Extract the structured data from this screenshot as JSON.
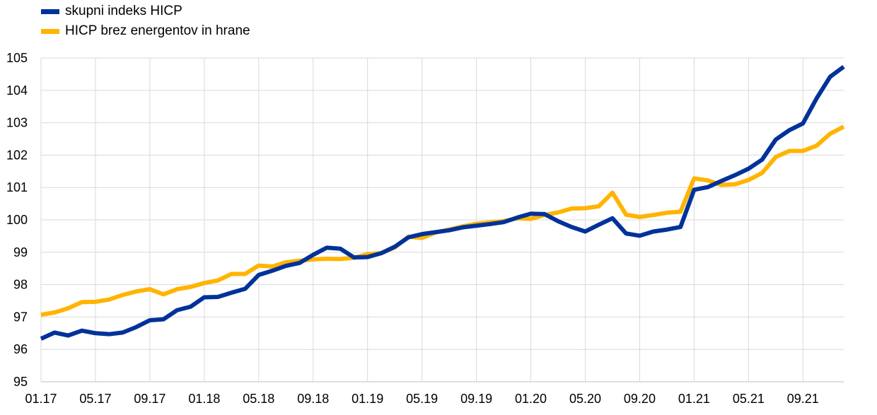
{
  "chart_data": {
    "type": "line",
    "title": "",
    "xlabel": "",
    "ylabel": "",
    "ylim": [
      95,
      105
    ],
    "yticks": [
      95,
      96,
      97,
      98,
      99,
      100,
      101,
      102,
      103,
      104,
      105
    ],
    "grid": true,
    "legend_position": "top-left",
    "x_tick_labels": [
      "01.17",
      "05.17",
      "09.17",
      "01.18",
      "05.18",
      "09.18",
      "01.19",
      "05.19",
      "09.19",
      "01.20",
      "05.20",
      "09.20",
      "01.21",
      "05.21",
      "09.21"
    ],
    "x_tick_every": 4,
    "x": [
      "01.17",
      "02.17",
      "03.17",
      "04.17",
      "05.17",
      "06.17",
      "07.17",
      "08.17",
      "09.17",
      "10.17",
      "11.17",
      "12.17",
      "01.18",
      "02.18",
      "03.18",
      "04.18",
      "05.18",
      "06.18",
      "07.18",
      "08.18",
      "09.18",
      "10.18",
      "11.18",
      "12.18",
      "01.19",
      "02.19",
      "03.19",
      "04.19",
      "05.19",
      "06.19",
      "07.19",
      "08.19",
      "09.19",
      "10.19",
      "11.19",
      "12.19",
      "01.20",
      "02.20",
      "03.20",
      "04.20",
      "05.20",
      "06.20",
      "07.20",
      "08.20",
      "09.20",
      "10.20",
      "11.20",
      "12.20",
      "01.21",
      "02.21",
      "03.21",
      "04.21",
      "05.21",
      "06.21",
      "07.21",
      "08.21",
      "09.21",
      "10.21",
      "11.21",
      "12.21"
    ],
    "series": [
      {
        "name": "skupni indeks HICP",
        "color": "#003299",
        "values": [
          96.33,
          96.52,
          96.43,
          96.58,
          96.5,
          96.47,
          96.52,
          96.69,
          96.9,
          96.93,
          97.21,
          97.32,
          97.61,
          97.62,
          97.75,
          97.87,
          98.3,
          98.43,
          98.58,
          98.67,
          98.92,
          99.14,
          99.11,
          98.84,
          98.85,
          98.97,
          99.17,
          99.46,
          99.56,
          99.62,
          99.68,
          99.77,
          99.82,
          99.87,
          99.93,
          100.07,
          100.19,
          100.18,
          99.96,
          99.78,
          99.64,
          99.85,
          100.05,
          99.58,
          99.51,
          99.64,
          99.7,
          99.78,
          100.93,
          101.01,
          101.2,
          101.38,
          101.58,
          101.86,
          102.48,
          102.77,
          102.98,
          103.75,
          104.42,
          104.73
        ]
      },
      {
        "name": "HICP brez energentov in hrane",
        "color": "#FFB400",
        "values": [
          97.07,
          97.14,
          97.27,
          97.46,
          97.47,
          97.54,
          97.68,
          97.79,
          97.86,
          97.7,
          97.86,
          97.93,
          98.05,
          98.13,
          98.33,
          98.33,
          98.59,
          98.56,
          98.69,
          98.74,
          98.78,
          98.8,
          98.79,
          98.83,
          98.94,
          98.97,
          99.15,
          99.48,
          99.44,
          99.61,
          99.7,
          99.8,
          99.88,
          99.92,
          99.96,
          100.05,
          100.03,
          100.15,
          100.23,
          100.35,
          100.36,
          100.42,
          100.84,
          100.16,
          100.09,
          100.15,
          100.22,
          100.25,
          101.28,
          101.22,
          101.08,
          101.1,
          101.23,
          101.45,
          101.94,
          102.13,
          102.13,
          102.29,
          102.66,
          102.88
        ]
      }
    ]
  }
}
